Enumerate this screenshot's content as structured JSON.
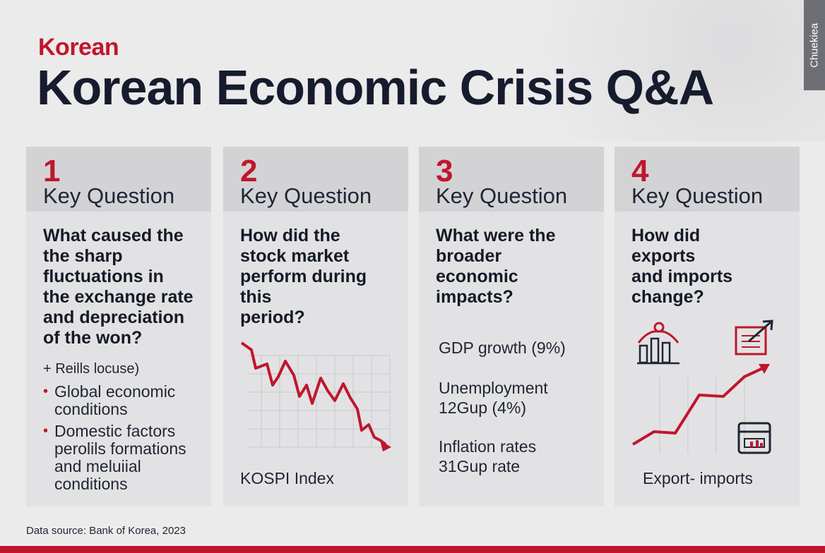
{
  "kicker": "Korean",
  "title": "Korean Economic Crisis Q&A",
  "watermark": "Chuekiea",
  "source": "Data source: Bank of Korea, 2023",
  "colors": {
    "accent": "#c0162c",
    "navy": "#161c2d",
    "card": "#e2e2e4",
    "card_header": "#d3d3d6"
  },
  "cards": [
    {
      "number": "1",
      "heading": "Key Question",
      "question": [
        "What caused the",
        "the sharp",
        "fluctuations in",
        "the exchange rate",
        "and depreciation",
        "of the won?"
      ],
      "note": "+ Reills locuse)",
      "bullets": [
        [
          "Global economic",
          "conditions"
        ],
        [
          "Domestic factors",
          "perolils formations",
          "and meluiial",
          "conditions"
        ]
      ]
    },
    {
      "number": "2",
      "heading": "Key Question",
      "question": [
        "How did the",
        "stock market",
        "perform during",
        "this",
        "period?"
      ],
      "caption": "KOSPI Index",
      "icon": "declining-line-chart"
    },
    {
      "number": "3",
      "heading": "Key Question",
      "question": [
        "What were the",
        "broader",
        "economic",
        "impacts?"
      ],
      "stats": [
        [
          "GDP growth (9%)"
        ],
        [
          "Unemployment",
          "12Gup (4%)"
        ],
        [
          "Inflation rates",
          "31Gup rate"
        ]
      ]
    },
    {
      "number": "4",
      "heading": "Key Question",
      "question": [
        "How did",
        "exports",
        "and imports",
        "change?"
      ],
      "caption": "Export- imports",
      "icons": [
        "bar-chart-person-icon",
        "rising-chart-arrow-icon",
        "calendar-chart-icon"
      ]
    }
  ]
}
